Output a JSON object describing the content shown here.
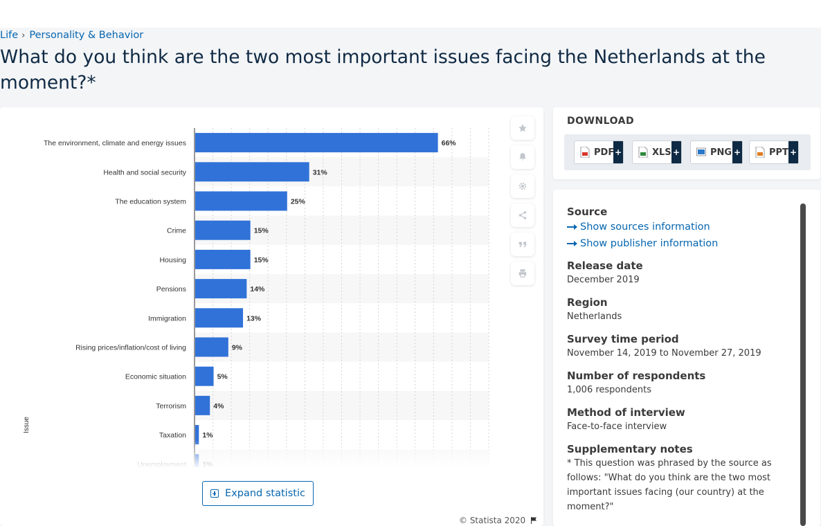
{
  "breadcrumb": {
    "items": [
      "Life",
      "Personality & Behavior"
    ]
  },
  "page_title": "What do you think are the two most important issues facing the Netherlands at the moment?*",
  "chart_data": {
    "type": "bar",
    "orientation": "horizontal",
    "categories": [
      "The environment, climate and energy issues",
      "Health and social security",
      "The education system",
      "Crime",
      "Housing",
      "Pensions",
      "Immigration",
      "Rising prices/inflation/cost of living",
      "Economic situation",
      "Terrorism",
      "Taxation",
      "Unemployment"
    ],
    "values": [
      66,
      31,
      25,
      15,
      15,
      14,
      13,
      9,
      5,
      4,
      1,
      1
    ],
    "value_labels": [
      "66%",
      "31%",
      "25%",
      "15%",
      "15%",
      "14%",
      "13%",
      "9%",
      "5%",
      "4%",
      "1%",
      "1%"
    ],
    "unit": "%",
    "ylabel": "Issue",
    "xlim": [
      0,
      80
    ],
    "grid": true,
    "bar_color": "#3172d8",
    "alt_row_color": "#f7f7f7"
  },
  "chart_ui": {
    "expand_label": "Expand statistic",
    "copyright": "© Statista 2020",
    "tools": [
      "star-icon",
      "bell-icon",
      "gear-icon",
      "share-icon",
      "quote-icon",
      "print-icon"
    ]
  },
  "download": {
    "heading": "DOWNLOAD",
    "plus": "+",
    "formats": [
      {
        "label": "PDF",
        "icon": "pdf-file-icon",
        "color": "#d9342b"
      },
      {
        "label": "XLS",
        "icon": "xls-file-icon",
        "color": "#2e8b3a"
      },
      {
        "label": "PNG",
        "icon": "png-file-icon",
        "color": "#2a78c9"
      },
      {
        "label": "PPT",
        "icon": "ppt-file-icon",
        "color": "#e07b1f"
      }
    ]
  },
  "info": {
    "source_heading": "Source",
    "show_sources": "Show sources information",
    "show_publisher": "Show publisher information",
    "release_date_heading": "Release date",
    "release_date": "December 2019",
    "region_heading": "Region",
    "region": "Netherlands",
    "survey_period_heading": "Survey time period",
    "survey_period": "November 14, 2019 to November 27, 2019",
    "respondents_heading": "Number of respondents",
    "respondents": "1,006 respondents",
    "method_heading": "Method of interview",
    "method": "Face-to-face interview",
    "notes_heading": "Supplementary notes",
    "notes": "* This question was phrased by the source as follows: \"What do you think are the two most important issues facing (our country) at the moment?\""
  }
}
